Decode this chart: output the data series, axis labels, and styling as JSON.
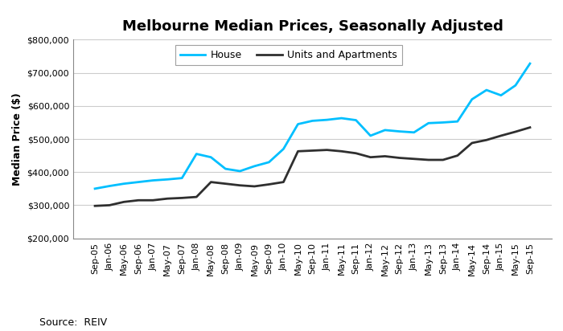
{
  "title": "Melbourne Median Prices, Seasonally Adjusted",
  "ylabel": "Median Price ($)",
  "source": "Source:  REIV",
  "ylim": [
    200000,
    800000
  ],
  "yticks": [
    200000,
    300000,
    400000,
    500000,
    600000,
    700000,
    800000
  ],
  "x_labels": [
    "Sep-05",
    "Jan-06",
    "May-06",
    "Sep-06",
    "Jan-07",
    "May-07",
    "Sep-07",
    "Jan-08",
    "May-08",
    "Sep-08",
    "Jan-09",
    "May-09",
    "Sep-09",
    "Jan-10",
    "May-10",
    "Sep-10",
    "Jan-11",
    "May-11",
    "Sep-11",
    "Jan-12",
    "May-12",
    "Sep-12",
    "Jan-13",
    "May-13",
    "Sep-13",
    "Jan-14",
    "May-14",
    "Sep-14",
    "Jan-15",
    "May-15",
    "Sep-15"
  ],
  "house": [
    350000,
    358000,
    365000,
    370000,
    375000,
    378000,
    382000,
    455000,
    445000,
    410000,
    403000,
    418000,
    430000,
    470000,
    545000,
    555000,
    558000,
    563000,
    557000,
    510000,
    527000,
    523000,
    520000,
    548000,
    550000,
    553000,
    620000,
    648000,
    632000,
    662000,
    728000
  ],
  "units": [
    298000,
    300000,
    310000,
    315000,
    315000,
    320000,
    322000,
    325000,
    370000,
    365000,
    360000,
    357000,
    363000,
    370000,
    463000,
    465000,
    467000,
    463000,
    457000,
    445000,
    448000,
    443000,
    440000,
    437000,
    437000,
    450000,
    488000,
    497000,
    510000,
    522000,
    535000
  ],
  "house_color": "#00BFFF",
  "units_color": "#2F2F2F",
  "house_label": "House",
  "units_label": "Units and Apartments",
  "bg_color": "#FFFFFF",
  "grid_color": "#CCCCCC",
  "line_width": 2.0,
  "title_fontsize": 13,
  "tick_fontsize": 8,
  "ylabel_fontsize": 9,
  "legend_fontsize": 9,
  "source_fontsize": 9
}
